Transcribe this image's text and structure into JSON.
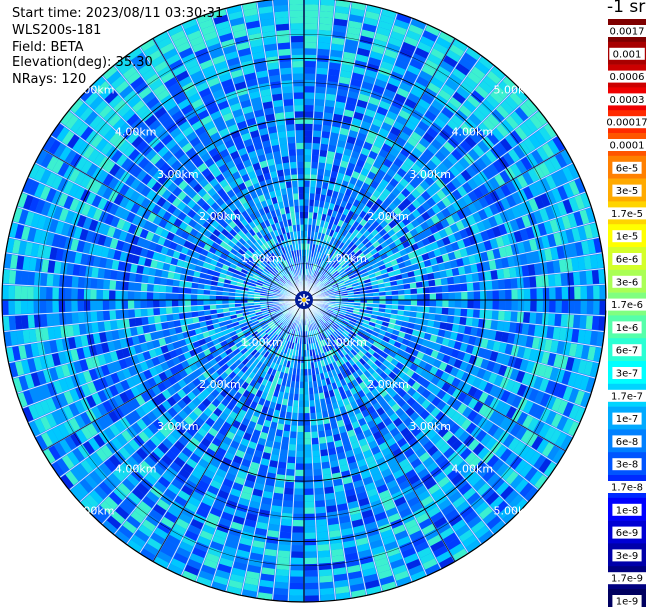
{
  "header": {
    "start_time": "Start time: 2023/08/11 03:30:31",
    "device": "WLS200s-181",
    "field": "Field: BETA",
    "elevation": "Elevation(deg): 35.30",
    "nrays": "NRays: 120"
  },
  "colorbar": {
    "unit_label": "-1 sr",
    "entries": [
      {
        "label": "0.0017",
        "color": "#7f0000"
      },
      {
        "label": "0.001",
        "color": "#a80000"
      },
      {
        "label": "0.0006",
        "color": "#cc0000"
      },
      {
        "label": "0.0003",
        "color": "#f00000"
      },
      {
        "label": "0.00017",
        "color": "#ff2a00"
      },
      {
        "label": "0.0001",
        "color": "#ff5500"
      },
      {
        "label": "6e-5",
        "color": "#ff8000"
      },
      {
        "label": "3e-5",
        "color": "#ffaa00"
      },
      {
        "label": "1.7e-5",
        "color": "#ffd400"
      },
      {
        "label": "1e-5",
        "color": "#ffff00"
      },
      {
        "label": "6e-6",
        "color": "#d4ff2a"
      },
      {
        "label": "3e-6",
        "color": "#aaff55"
      },
      {
        "label": "1.7e-6",
        "color": "#80ff80"
      },
      {
        "label": "1e-6",
        "color": "#55ffaa"
      },
      {
        "label": "6e-7",
        "color": "#2affd4"
      },
      {
        "label": "3e-7",
        "color": "#00ffff"
      },
      {
        "label": "1.7e-7",
        "color": "#00d4ff"
      },
      {
        "label": "1e-7",
        "color": "#00aaff"
      },
      {
        "label": "6e-8",
        "color": "#0080ff"
      },
      {
        "label": "3e-8",
        "color": "#0055ff"
      },
      {
        "label": "1.7e-8",
        "color": "#002aff"
      },
      {
        "label": "1e-8",
        "color": "#0000ff"
      },
      {
        "label": "6e-9",
        "color": "#0000d4"
      },
      {
        "label": "3e-9",
        "color": "#0000aa"
      },
      {
        "label": "1.7e-9",
        "color": "#000080"
      },
      {
        "label": "1e-9",
        "color": "#000060"
      }
    ]
  },
  "chart_data": {
    "type": "heatmap",
    "projection": "polar-ppi",
    "nrays": 120,
    "range_max_km": 5.0,
    "range_rings_km": [
      1,
      2,
      3,
      4,
      5
    ],
    "ring_labels": [
      "1.00km",
      "2.00km",
      "3.00km",
      "4.00km",
      "5.00km"
    ],
    "dominant_values": "1e-8 to 3e-7",
    "colormap": "jet"
  }
}
